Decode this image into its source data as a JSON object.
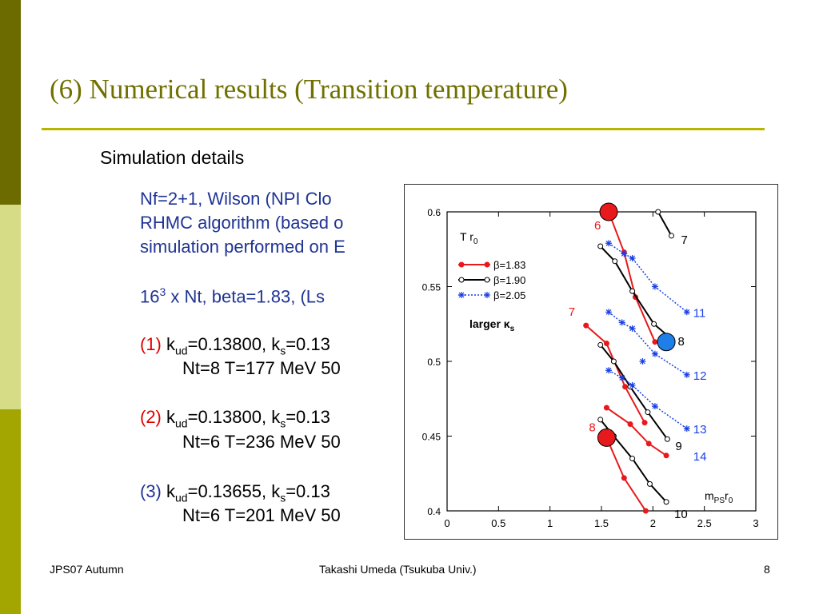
{
  "slide": {
    "title": "(6) Numerical results (Transition temperature)",
    "section_heading": "Simulation details",
    "lines": {
      "l1": "Nf=2+1,  Wilson (NPI Clo",
      "l2": "RHMC algorithm (based o",
      "l3": "simulation performed on E",
      "l4_a": "16",
      "l4_sup": "3",
      "l4_b": " x Nt, beta=1.83,  (Ls",
      "r1_num": "(1)",
      "r1_k": " k",
      "r1_ud": "ud",
      "r1_mid": "=0.13800, k",
      "r1_s": "s",
      "r1_end": "=0.13",
      "r1_line2": "Nt=8  T=177 MeV  50",
      "r2_num": "(2)",
      "r2_k": " k",
      "r2_ud": "ud",
      "r2_mid": "=0.13800, k",
      "r2_s": "s",
      "r2_end": "=0.13",
      "r2_line2": "Nt=6  T=236 MeV  50",
      "r3_num": "(3)",
      "r3_k": " k",
      "r3_ud": "ud",
      "r3_mid": "=0.13655, k",
      "r3_s": "s",
      "r3_end": "=0.13",
      "r3_line2": "Nt=6  T=201 MeV  50"
    }
  },
  "footer": {
    "left": "JPS07 Autumn",
    "center": "Takashi Umeda (Tsukuba Univ.)",
    "right": "8"
  },
  "colors": {
    "red": "#e00000",
    "blue": "#1f3494",
    "beta183": "#e8191c",
    "beta190": "#000000",
    "beta205": "#1a3fe6",
    "marker_red": "#e8191c",
    "marker_blue": "#1f7fe8"
  },
  "chart_data": {
    "type": "line",
    "ylabel": "T r",
    "ylabel_sub": "0",
    "xlabel": "m",
    "xlabel_sub1": "PS",
    "xlabel_mid": "r",
    "xlabel_sub2": "0",
    "xlim": [
      0,
      3
    ],
    "ylim": [
      0.4,
      0.6
    ],
    "x_ticks": [
      "0",
      "0.5",
      "1",
      "1.5",
      "2",
      "2.5",
      "3"
    ],
    "y_ticks": [
      "0.4",
      "0.45",
      "0.5",
      "0.55",
      "0.6"
    ],
    "legend_note": "larger κ",
    "legend_note_sub": "s",
    "series": [
      {
        "name": "β=1.83",
        "style": "solid",
        "marker": "filled-circle",
        "color": "#e8191c",
        "lines": [
          {
            "label": "6",
            "points": [
              [
                1.57,
                0.6
              ],
              [
                1.72,
                0.573
              ],
              [
                1.83,
                0.543
              ],
              [
                2.02,
                0.513
              ]
            ]
          },
          {
            "label": "7",
            "points": [
              [
                1.35,
                0.524
              ],
              [
                1.55,
                0.512
              ],
              [
                1.73,
                0.483
              ],
              [
                1.92,
                0.459
              ]
            ]
          },
          {
            "label": "8",
            "points": [
              [
                1.55,
                0.449
              ],
              [
                1.72,
                0.422
              ],
              [
                1.93,
                0.4
              ]
            ]
          },
          {
            "label": "",
            "points": [
              [
                1.55,
                0.469
              ],
              [
                1.78,
                0.458
              ],
              [
                1.96,
                0.445
              ],
              [
                2.13,
                0.437
              ]
            ]
          }
        ]
      },
      {
        "name": "β=1.90",
        "style": "solid",
        "marker": "open-circle",
        "color": "#000000",
        "lines": [
          {
            "label": "7",
            "points": [
              [
                2.05,
                0.6
              ],
              [
                2.18,
                0.584
              ]
            ]
          },
          {
            "label": "8",
            "points": [
              [
                1.49,
                0.577
              ],
              [
                1.63,
                0.567
              ],
              [
                1.8,
                0.547
              ],
              [
                2.01,
                0.525
              ],
              [
                2.18,
                0.515
              ]
            ]
          },
          {
            "label": "9",
            "points": [
              [
                1.49,
                0.511
              ],
              [
                1.62,
                0.5
              ],
              [
                1.78,
                0.483
              ],
              [
                1.95,
                0.466
              ],
              [
                2.14,
                0.448
              ]
            ]
          },
          {
            "label": "10",
            "points": [
              [
                1.49,
                0.461
              ],
              [
                1.62,
                0.45
              ],
              [
                1.8,
                0.435
              ],
              [
                1.97,
                0.418
              ],
              [
                2.13,
                0.406
              ]
            ]
          }
        ]
      },
      {
        "name": "β=2.05",
        "style": "dotted",
        "marker": "star",
        "color": "#1a3fe6",
        "lines": [
          {
            "label": "11",
            "points": [
              [
                1.57,
                0.579
              ],
              [
                1.72,
                0.572
              ],
              [
                1.8,
                0.569
              ],
              [
                2.02,
                0.55
              ],
              [
                2.33,
                0.533
              ]
            ]
          },
          {
            "label": "12",
            "points": [
              [
                1.57,
                0.533
              ],
              [
                1.7,
                0.526
              ],
              [
                1.8,
                0.522
              ],
              [
                2.02,
                0.505
              ],
              [
                2.33,
                0.491
              ]
            ]
          },
          {
            "label": "13",
            "points": [
              [
                1.57,
                0.494
              ],
              [
                1.7,
                0.489
              ],
              [
                1.8,
                0.484
              ],
              [
                2.02,
                0.47
              ],
              [
                2.33,
                0.455
              ]
            ]
          },
          {
            "label": "14",
            "points": [
              [
                1.9,
                0.5
              ]
            ]
          }
        ]
      }
    ],
    "highlight_markers": [
      {
        "x": 1.57,
        "y": 0.6,
        "color": "#e8191c"
      },
      {
        "x": 1.55,
        "y": 0.449,
        "color": "#e8191c"
      },
      {
        "x": 2.13,
        "y": 0.513,
        "color": "#1f7fe8"
      }
    ],
    "grid": false,
    "legend_position": "upper-left"
  }
}
